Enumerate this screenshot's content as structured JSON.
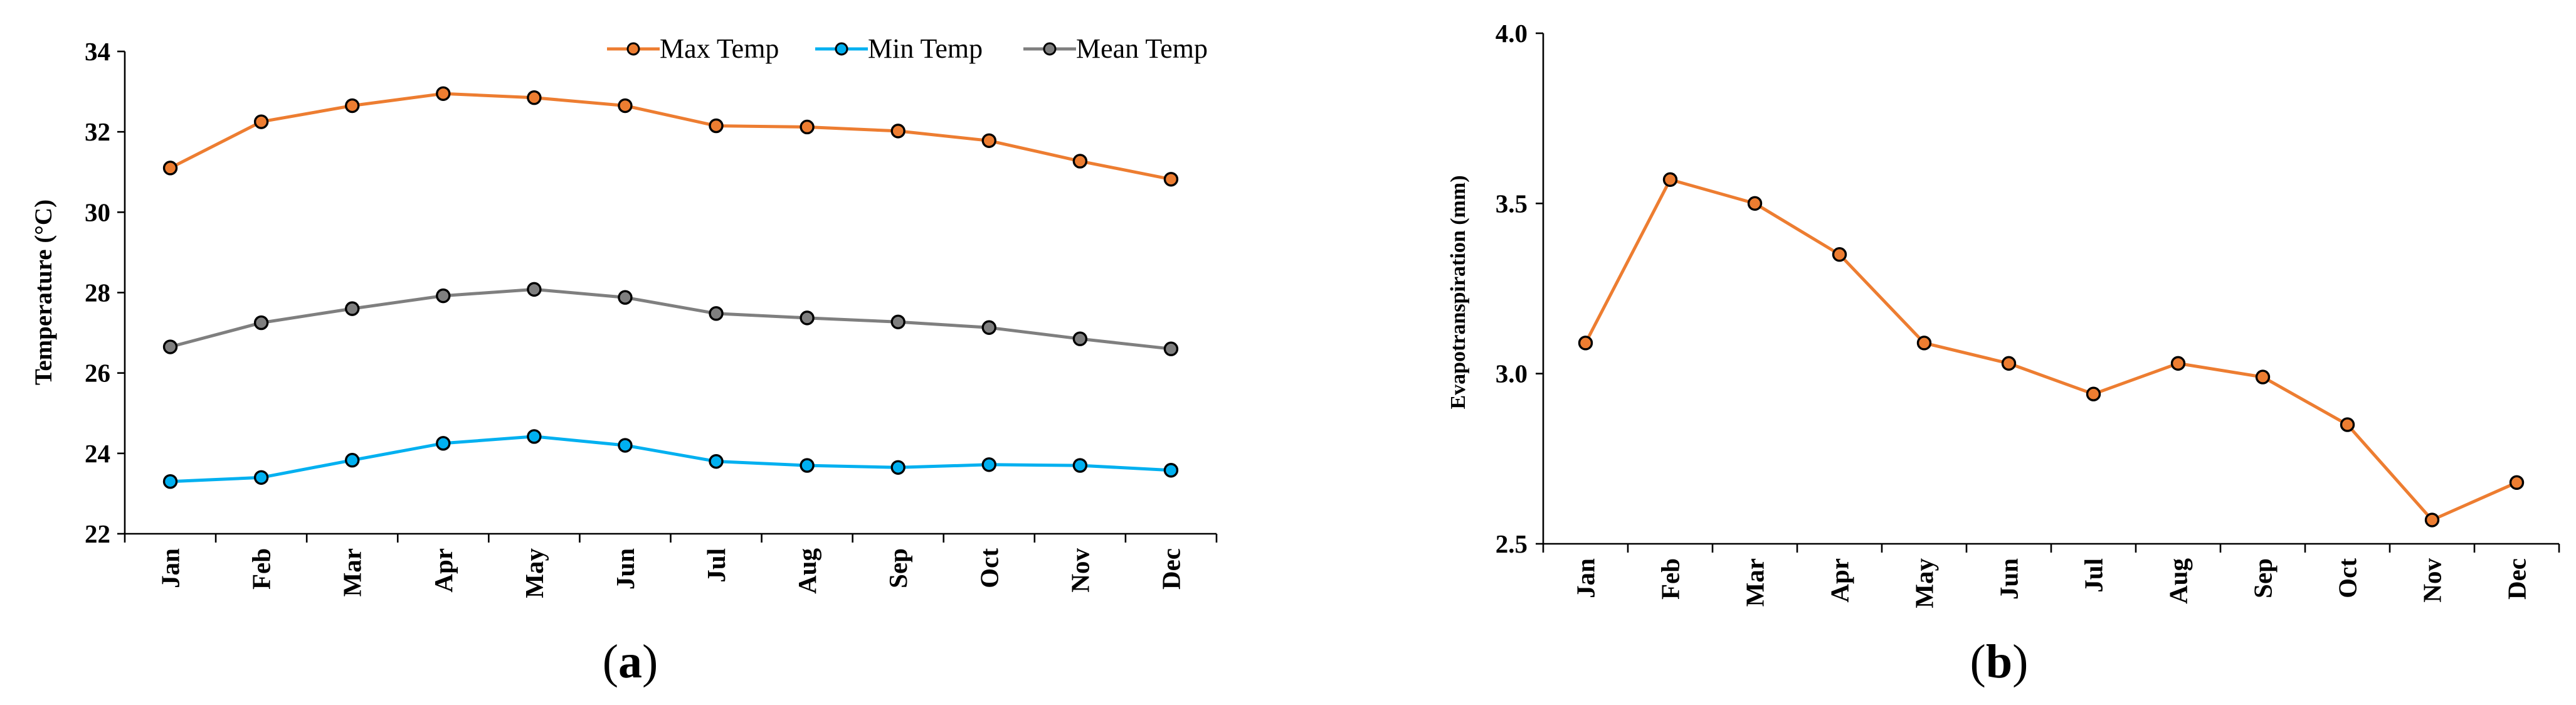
{
  "chart_data": [
    {
      "type": "line",
      "panel_label": "a",
      "title": "",
      "xlabel": "",
      "ylabel": "Temperature (°C)",
      "ylim": [
        22,
        34
      ],
      "yticks": [
        "22",
        "24",
        "26",
        "28",
        "30",
        "32",
        "34"
      ],
      "categories": [
        "Jan",
        "Feb",
        "Mar",
        "Apr",
        "May",
        "Jun",
        "Jul",
        "Aug",
        "Sep",
        "Oct",
        "Nov",
        "Dec"
      ],
      "legend_position": "top-right",
      "series": [
        {
          "name": "Max Temp",
          "color": "#ED7D31",
          "values": [
            31.1,
            32.25,
            32.65,
            32.95,
            32.85,
            32.65,
            32.15,
            32.12,
            32.02,
            31.78,
            31.27,
            30.82
          ]
        },
        {
          "name": "Min Temp",
          "color": "#00B0F0",
          "values": [
            23.3,
            23.4,
            23.83,
            24.25,
            24.42,
            24.2,
            23.8,
            23.7,
            23.65,
            23.72,
            23.7,
            23.58
          ]
        },
        {
          "name": "Mean Temp",
          "color": "#7F7F7F",
          "values": [
            26.65,
            27.25,
            27.6,
            27.92,
            28.08,
            27.88,
            27.48,
            27.37,
            27.27,
            27.13,
            26.85,
            26.6
          ]
        }
      ]
    },
    {
      "type": "line",
      "panel_label": "b",
      "title": "",
      "xlabel": "",
      "ylabel": "Evapotranspiration (mm)",
      "ylim": [
        2.5,
        4.0
      ],
      "yticks": [
        "2.5",
        "3.0",
        "3.5",
        "4.0"
      ],
      "categories": [
        "Jan",
        "Feb",
        "Mar",
        "Apr",
        "May",
        "Jun",
        "Jul",
        "Aug",
        "Sep",
        "Oct",
        "Nov",
        "Dec"
      ],
      "series": [
        {
          "name": "Evapotranspiration",
          "color": "#ED7D31",
          "values": [
            3.09,
            3.57,
            3.5,
            3.35,
            3.09,
            3.03,
            2.94,
            3.03,
            2.99,
            2.85,
            2.57,
            2.68
          ]
        }
      ]
    }
  ]
}
